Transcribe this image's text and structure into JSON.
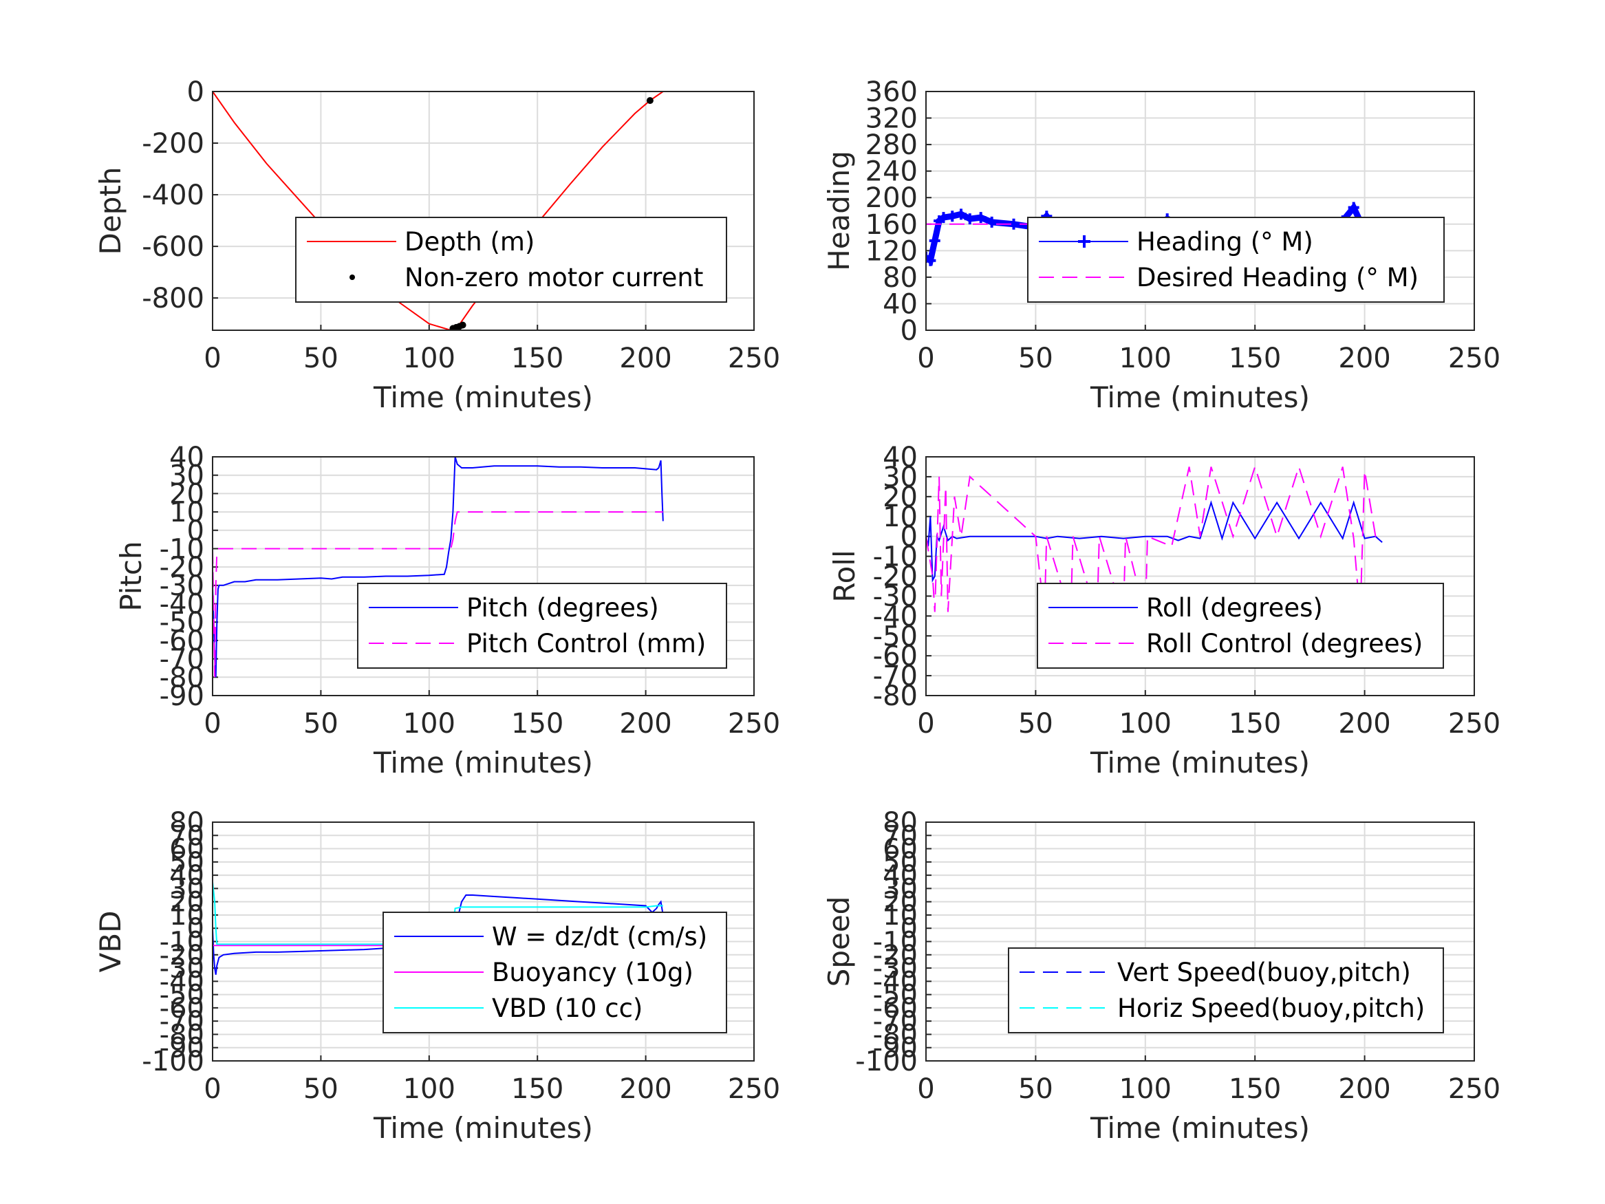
{
  "chart_data": [
    {
      "type": "line",
      "xlabel": "Time (minutes)",
      "ylabel": "Depth",
      "xlim": [
        0,
        250
      ],
      "ylim": [
        -925,
        0
      ],
      "xticks": [
        0,
        50,
        100,
        150,
        200,
        250
      ],
      "yticks": [
        0,
        -200,
        -400,
        -600,
        -800
      ],
      "grid": true,
      "legend": "center-right",
      "series": [
        {
          "name": "Depth (m)",
          "color": "#ff0000",
          "style": "solid",
          "x": [
            0,
            10,
            25,
            40,
            55,
            70,
            85,
            100,
            110,
            113,
            120,
            135,
            150,
            165,
            180,
            195,
            202,
            208
          ],
          "y": [
            0,
            -120,
            -280,
            -420,
            -560,
            -690,
            -810,
            -900,
            -925,
            -915,
            -830,
            -670,
            -510,
            -360,
            -215,
            -85,
            -35,
            0
          ]
        },
        {
          "name": "Non-zero motor current",
          "color": "#000000",
          "style": "marker",
          "x": [
            111,
            112.5,
            114,
            115.5,
            202
          ],
          "y": [
            -918,
            -914,
            -910,
            -905,
            -35
          ]
        }
      ]
    },
    {
      "type": "line",
      "xlabel": "Time (minutes)",
      "ylabel": "Heading",
      "xlim": [
        0,
        250
      ],
      "ylim": [
        0,
        360
      ],
      "xticks": [
        0,
        50,
        100,
        150,
        200,
        250
      ],
      "yticks": [
        0,
        40,
        80,
        120,
        160,
        200,
        240,
        280,
        320,
        360
      ],
      "grid": true,
      "legend": "center-right",
      "series": [
        {
          "name": "Heading (° M)",
          "color": "#0000ff",
          "style": "plus",
          "x": [
            0,
            2,
            4,
            6,
            8,
            12,
            16,
            20,
            25,
            30,
            40,
            50,
            55,
            60,
            70,
            80,
            90,
            100,
            110,
            120,
            130,
            140,
            150,
            160,
            170,
            180,
            190,
            195,
            200,
            205,
            208
          ],
          "y": [
            110,
            105,
            135,
            165,
            170,
            172,
            175,
            168,
            170,
            163,
            160,
            155,
            172,
            150,
            160,
            158,
            162,
            150,
            168,
            155,
            152,
            140,
            158,
            145,
            155,
            150,
            165,
            185,
            150,
            160,
            145
          ]
        },
        {
          "name": "Desired Heading (° M)",
          "color": "#ff00ff",
          "style": "dashed",
          "x": [
            0,
            208
          ],
          "y": [
            160,
            160
          ]
        }
      ]
    },
    {
      "type": "line",
      "xlabel": "Time (minutes)",
      "ylabel": "Pitch",
      "xlim": [
        0,
        250
      ],
      "ylim": [
        -90,
        40
      ],
      "xticks": [
        0,
        50,
        100,
        150,
        200,
        250
      ],
      "yticks": [
        -90,
        -80,
        -70,
        -60,
        -50,
        -40,
        -30,
        -20,
        -10,
        0,
        10,
        20,
        30,
        40
      ],
      "grid": true,
      "legend": "center-right",
      "series": [
        {
          "name": "Pitch (degrees)",
          "color": "#0000ff",
          "style": "solid",
          "x": [
            0,
            0.5,
            1,
            1.5,
            2,
            2.5,
            3,
            5,
            10,
            15,
            20,
            30,
            40,
            50,
            55,
            60,
            70,
            80,
            90,
            100,
            107,
            108,
            109,
            110,
            111,
            112,
            113,
            115,
            120,
            130,
            140,
            150,
            160,
            170,
            180,
            190,
            195,
            200,
            205,
            206,
            207,
            207.5,
            208
          ],
          "y": [
            -30,
            -50,
            -70,
            -80,
            -50,
            -32,
            -30,
            -30,
            -28,
            -28,
            -27,
            -27,
            -26.5,
            -26,
            -26.5,
            -25.5,
            -25.5,
            -25,
            -25,
            -24.5,
            -24,
            -20,
            -12,
            -5,
            10,
            40,
            36,
            34,
            34,
            35,
            35,
            35,
            34.5,
            34.5,
            34,
            34,
            34,
            33.5,
            33,
            34,
            38,
            20,
            5
          ]
        },
        {
          "name": "Pitch Control (mm)",
          "color": "#ff00ff",
          "style": "dashed",
          "x": [
            0,
            1,
            1.5,
            2,
            2.5,
            3,
            5,
            110,
            111,
            112,
            113,
            207,
            208
          ],
          "y": [
            -10,
            -80,
            -30,
            -12,
            -10,
            -10,
            -10,
            -10,
            -5,
            5,
            10,
            10,
            10
          ]
        }
      ]
    },
    {
      "type": "line",
      "xlabel": "Time (minutes)",
      "ylabel": "Roll",
      "xlim": [
        0,
        250
      ],
      "ylim": [
        -80,
        40
      ],
      "xticks": [
        0,
        50,
        100,
        150,
        200,
        250
      ],
      "yticks": [
        -80,
        -70,
        -60,
        -50,
        -40,
        -30,
        -20,
        -10,
        0,
        10,
        20,
        30,
        40
      ],
      "grid": true,
      "legend": "center-right",
      "series": [
        {
          "name": "Roll (degrees)",
          "color": "#0000ff",
          "style": "solid",
          "x": [
            0,
            1,
            2,
            3,
            4,
            5,
            6,
            8,
            10,
            12,
            14,
            20,
            30,
            50,
            55,
            60,
            70,
            80,
            90,
            100,
            110,
            115,
            120,
            125,
            130,
            135,
            140,
            150,
            160,
            170,
            180,
            190,
            195,
            200,
            205,
            208
          ],
          "y": [
            0,
            -5,
            10,
            -22,
            -20,
            0,
            -2,
            5,
            -2,
            0,
            -1,
            0,
            0,
            0,
            -1,
            0,
            -1,
            0,
            -1,
            0,
            0,
            -2,
            0,
            -1,
            17,
            -1,
            17,
            -1,
            17,
            -1,
            17,
            -1,
            17,
            -1,
            0,
            -3
          ]
        },
        {
          "name": "Roll Control (degrees)",
          "color": "#ff00ff",
          "style": "dashed",
          "x": [
            0,
            3,
            4,
            6,
            7,
            9,
            10,
            12,
            13,
            16,
            20,
            50,
            54,
            55,
            66,
            67,
            78,
            79,
            90,
            91,
            100,
            101,
            112,
            120,
            125,
            130,
            140,
            150,
            160,
            170,
            180,
            190,
            195,
            198,
            200,
            205,
            208
          ],
          "y": [
            0,
            -20,
            -38,
            30,
            -30,
            25,
            -38,
            0,
            20,
            0,
            30,
            0,
            -40,
            0,
            -40,
            0,
            -40,
            0,
            -40,
            0,
            -40,
            0,
            -5,
            35,
            0,
            35,
            0,
            35,
            0,
            35,
            0,
            35,
            -1,
            -40,
            33,
            0,
            0
          ]
        }
      ]
    },
    {
      "type": "line",
      "xlabel": "Time (minutes)",
      "ylabel": "VBD",
      "xlim": [
        0,
        250
      ],
      "ylim": [
        -100,
        80
      ],
      "xticks": [
        0,
        50,
        100,
        150,
        200,
        250
      ],
      "yticks": [
        -100,
        -90,
        -80,
        -70,
        -60,
        -50,
        -40,
        -30,
        -20,
        -10,
        0,
        10,
        20,
        30,
        40,
        50,
        60,
        70,
        80
      ],
      "grid": true,
      "legend": "center-right",
      "series": [
        {
          "name": "W = dz/dt (cm/s)",
          "color": "#0000ff",
          "style": "solid",
          "x": [
            0,
            0.5,
            1,
            1.5,
            2,
            3,
            5,
            10,
            20,
            30,
            40,
            50,
            60,
            70,
            80,
            90,
            100,
            105,
            110,
            112,
            115,
            117,
            120,
            130,
            140,
            150,
            160,
            170,
            180,
            190,
            200,
            203,
            205,
            206,
            207,
            208
          ],
          "y": [
            0,
            -20,
            -30,
            -35,
            -28,
            -22,
            -20,
            -19,
            -18,
            -18,
            -17.5,
            -17,
            -16.5,
            -16,
            -15,
            -15,
            -14,
            -14,
            -14,
            0,
            20,
            25,
            25,
            24,
            23,
            22,
            21,
            20,
            19,
            18,
            17,
            12,
            15,
            18,
            20,
            10
          ]
        },
        {
          "name": "Buoyancy (10g)",
          "color": "#ff00ff",
          "style": "solid",
          "x": [
            0,
            208
          ],
          "y": [
            -13,
            -13
          ]
        },
        {
          "name": "VBD (10 cc)",
          "color": "#00ffff",
          "style": "solid",
          "x": [
            0,
            1,
            1.5,
            2,
            3,
            5,
            100,
            108,
            110,
            112,
            115,
            200,
            205,
            208
          ],
          "y": [
            35,
            20,
            0,
            -12,
            -12,
            -12,
            -12,
            -12,
            -11,
            15,
            16,
            16,
            17,
            17
          ]
        }
      ]
    },
    {
      "type": "line",
      "xlabel": "Time (minutes)",
      "ylabel": "Speed",
      "xlim": [
        0,
        250
      ],
      "ylim": [
        -100,
        80
      ],
      "xticks": [
        0,
        50,
        100,
        150,
        200,
        250
      ],
      "yticks": [
        -100,
        -90,
        -80,
        -70,
        -60,
        -50,
        -40,
        -30,
        -20,
        -10,
        0,
        10,
        20,
        30,
        40,
        50,
        60,
        70,
        80
      ],
      "grid": true,
      "legend": "center-right",
      "series": [
        {
          "name": "Vert Speed(buoy,pitch)",
          "color": "#0000ff",
          "style": "dashed",
          "x": [],
          "y": []
        },
        {
          "name": "Horiz Speed(buoy,pitch)",
          "color": "#00ffff",
          "style": "dashed",
          "x": [],
          "y": []
        }
      ]
    }
  ]
}
